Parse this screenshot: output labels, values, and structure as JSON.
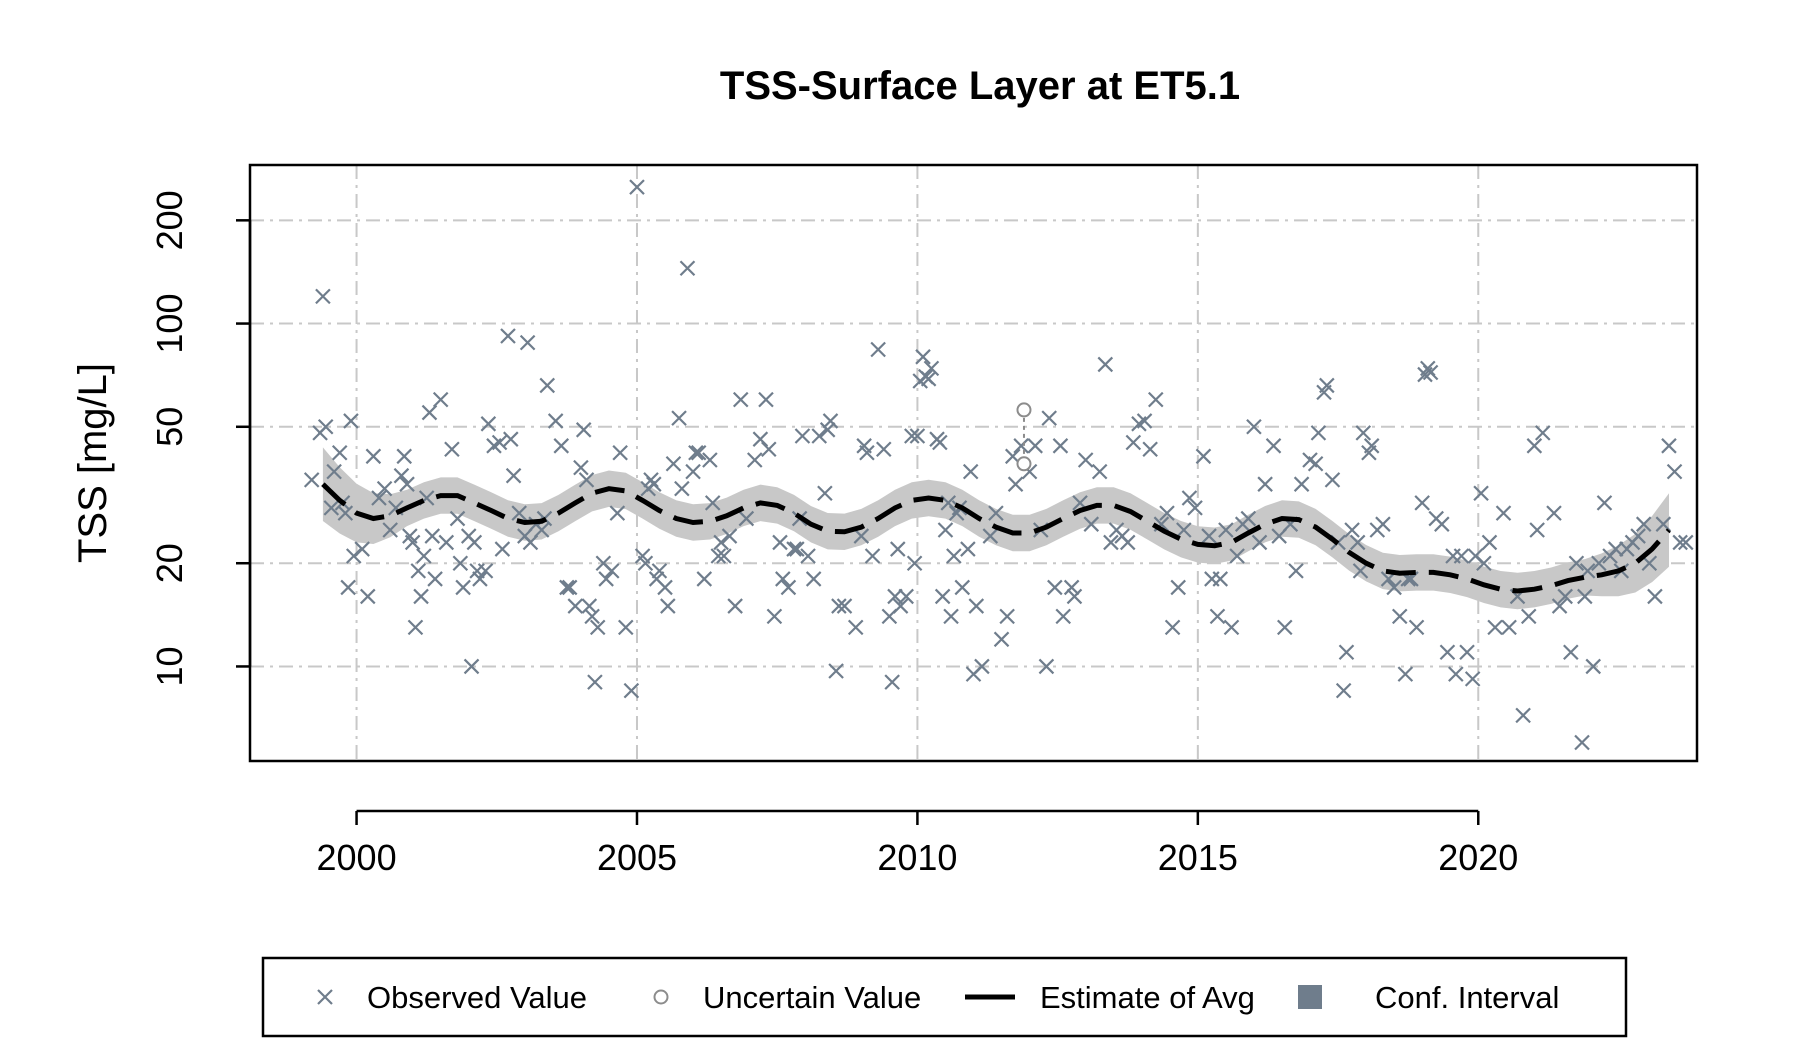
{
  "chart_data": {
    "type": "scatter",
    "title": "TSS-Surface Layer at ET5.1",
    "xlabel": "",
    "ylabel": "TSS [mg/L]",
    "y_scale": "log",
    "xlim": [
      1998.1,
      2023.9
    ],
    "ylim": [
      5.3,
      290
    ],
    "x_ticks": [
      2000,
      2005,
      2010,
      2015,
      2020
    ],
    "x_tick_labels": [
      "2000",
      "2005",
      "2010",
      "2015",
      "2020"
    ],
    "y_ticks": [
      10,
      20,
      50,
      100,
      200
    ],
    "y_tick_labels": [
      "10",
      "20",
      "50",
      "100",
      "200"
    ],
    "grid": true,
    "legend_position": "bottom",
    "colors": {
      "observed": "#6f7d8c",
      "uncertain": "#8c8c8c",
      "estimate": "#000000",
      "conf_band": "#c8c8c8",
      "conf_legend": "#6f7d8c",
      "grid": "#c8c8c8"
    },
    "legend": [
      {
        "label": "Observed Value",
        "symbol": "cross"
      },
      {
        "label": "Uncertain Value",
        "symbol": "circle"
      },
      {
        "label": "Estimate of Avg",
        "symbol": "dashed-line"
      },
      {
        "label": "Conf. Interval",
        "symbol": "square"
      }
    ],
    "observed": [
      [
        1999.2,
        35
      ],
      [
        1999.35,
        48
      ],
      [
        1999.4,
        120
      ],
      [
        1999.45,
        50
      ],
      [
        1999.55,
        29
      ],
      [
        1999.6,
        37
      ],
      [
        1999.7,
        42
      ],
      [
        1999.75,
        30
      ],
      [
        1999.8,
        28
      ],
      [
        1999.85,
        17
      ],
      [
        1999.9,
        52
      ],
      [
        1999.95,
        21
      ],
      [
        2000.1,
        22
      ],
      [
        2000.2,
        16
      ],
      [
        2000.3,
        41
      ],
      [
        2000.4,
        31
      ],
      [
        2000.5,
        33
      ],
      [
        2000.6,
        25
      ],
      [
        2000.7,
        29
      ],
      [
        2000.8,
        36
      ],
      [
        2000.85,
        41
      ],
      [
        2000.9,
        34
      ],
      [
        2000.95,
        24
      ],
      [
        2001.0,
        23
      ],
      [
        2001.05,
        13
      ],
      [
        2001.1,
        19
      ],
      [
        2001.15,
        16
      ],
      [
        2001.2,
        21
      ],
      [
        2001.25,
        31
      ],
      [
        2001.3,
        55
      ],
      [
        2001.35,
        24
      ],
      [
        2001.4,
        18
      ],
      [
        2001.5,
        60
      ],
      [
        2001.6,
        23
      ],
      [
        2001.7,
        43
      ],
      [
        2001.8,
        27
      ],
      [
        2001.85,
        20
      ],
      [
        2001.9,
        17
      ],
      [
        2002.0,
        24
      ],
      [
        2002.05,
        10
      ],
      [
        2002.1,
        23
      ],
      [
        2002.15,
        19
      ],
      [
        2002.2,
        18
      ],
      [
        2002.3,
        19
      ],
      [
        2002.35,
        51
      ],
      [
        2002.45,
        44
      ],
      [
        2002.55,
        45
      ],
      [
        2002.6,
        22
      ],
      [
        2002.7,
        92
      ],
      [
        2002.75,
        46
      ],
      [
        2002.8,
        36
      ],
      [
        2002.9,
        28
      ],
      [
        2003.0,
        24
      ],
      [
        2003.05,
        88
      ],
      [
        2003.1,
        23
      ],
      [
        2003.2,
        26
      ],
      [
        2003.3,
        25
      ],
      [
        2003.35,
        27
      ],
      [
        2003.4,
        66
      ],
      [
        2003.55,
        52
      ],
      [
        2003.65,
        44
      ],
      [
        2003.75,
        17
      ],
      [
        2003.8,
        17
      ],
      [
        2003.9,
        15
      ],
      [
        2004.0,
        38
      ],
      [
        2004.05,
        49
      ],
      [
        2004.1,
        35
      ],
      [
        2004.15,
        15
      ],
      [
        2004.2,
        14
      ],
      [
        2004.25,
        9
      ],
      [
        2004.3,
        13
      ],
      [
        2004.4,
        20
      ],
      [
        2004.45,
        18
      ],
      [
        2004.55,
        19
      ],
      [
        2004.65,
        28
      ],
      [
        2004.7,
        42
      ],
      [
        2004.8,
        13
      ],
      [
        2004.9,
        8.5
      ],
      [
        2005.0,
        250
      ],
      [
        2005.1,
        21
      ],
      [
        2005.15,
        20
      ],
      [
        2005.2,
        33
      ],
      [
        2005.25,
        35
      ],
      [
        2005.3,
        34
      ],
      [
        2005.35,
        18
      ],
      [
        2005.4,
        19
      ],
      [
        2005.5,
        17
      ],
      [
        2005.55,
        15
      ],
      [
        2005.65,
        39
      ],
      [
        2005.75,
        53
      ],
      [
        2005.8,
        33
      ],
      [
        2005.9,
        145
      ],
      [
        2006.0,
        37
      ],
      [
        2006.05,
        42
      ],
      [
        2006.1,
        42
      ],
      [
        2006.2,
        18
      ],
      [
        2006.3,
        40
      ],
      [
        2006.35,
        30
      ],
      [
        2006.45,
        21
      ],
      [
        2006.5,
        23
      ],
      [
        2006.55,
        21
      ],
      [
        2006.65,
        24
      ],
      [
        2006.75,
        15
      ],
      [
        2006.85,
        60
      ],
      [
        2006.95,
        27
      ],
      [
        2007.1,
        40
      ],
      [
        2007.2,
        46
      ],
      [
        2007.3,
        60
      ],
      [
        2007.35,
        43
      ],
      [
        2007.45,
        14
      ],
      [
        2007.55,
        23
      ],
      [
        2007.6,
        18
      ],
      [
        2007.7,
        17
      ],
      [
        2007.8,
        22
      ],
      [
        2007.85,
        22
      ],
      [
        2007.9,
        27
      ],
      [
        2007.95,
        47
      ],
      [
        2008.05,
        21
      ],
      [
        2008.15,
        18
      ],
      [
        2008.25,
        47
      ],
      [
        2008.35,
        32
      ],
      [
        2008.4,
        49
      ],
      [
        2008.45,
        52
      ],
      [
        2008.55,
        9.7
      ],
      [
        2008.6,
        15
      ],
      [
        2008.7,
        15
      ],
      [
        2008.9,
        13
      ],
      [
        2009.0,
        24
      ],
      [
        2009.05,
        44
      ],
      [
        2009.1,
        42
      ],
      [
        2009.2,
        21
      ],
      [
        2009.3,
        84
      ],
      [
        2009.4,
        43
      ],
      [
        2009.5,
        14
      ],
      [
        2009.55,
        9
      ],
      [
        2009.6,
        16
      ],
      [
        2009.65,
        22
      ],
      [
        2009.7,
        15
      ],
      [
        2009.8,
        16
      ],
      [
        2009.9,
        47
      ],
      [
        2009.95,
        20
      ],
      [
        2010.0,
        47
      ],
      [
        2010.05,
        68
      ],
      [
        2010.1,
        80
      ],
      [
        2010.15,
        70
      ],
      [
        2010.2,
        69
      ],
      [
        2010.25,
        74
      ],
      [
        2010.35,
        46
      ],
      [
        2010.4,
        45
      ],
      [
        2010.45,
        16
      ],
      [
        2010.5,
        25
      ],
      [
        2010.55,
        30
      ],
      [
        2010.6,
        14
      ],
      [
        2010.65,
        21
      ],
      [
        2010.7,
        28
      ],
      [
        2010.75,
        29
      ],
      [
        2010.8,
        17
      ],
      [
        2010.9,
        22
      ],
      [
        2010.95,
        37
      ],
      [
        2011.0,
        9.5
      ],
      [
        2011.05,
        15
      ],
      [
        2011.15,
        10
      ],
      [
        2011.3,
        24
      ],
      [
        2011.4,
        28
      ],
      [
        2011.5,
        12
      ],
      [
        2011.6,
        14
      ],
      [
        2011.7,
        41
      ],
      [
        2011.75,
        34
      ],
      [
        2011.85,
        44
      ],
      [
        2012.0,
        37
      ],
      [
        2012.1,
        44
      ],
      [
        2012.2,
        25
      ],
      [
        2012.3,
        10
      ],
      [
        2012.35,
        53
      ],
      [
        2012.45,
        17
      ],
      [
        2012.55,
        44
      ],
      [
        2012.6,
        14
      ],
      [
        2012.75,
        17
      ],
      [
        2012.8,
        16
      ],
      [
        2012.9,
        30
      ],
      [
        2013.0,
        40
      ],
      [
        2013.1,
        26
      ],
      [
        2013.25,
        37
      ],
      [
        2013.35,
        76
      ],
      [
        2013.45,
        23
      ],
      [
        2013.55,
        25
      ],
      [
        2013.65,
        24
      ],
      [
        2013.75,
        23
      ],
      [
        2013.85,
        45
      ],
      [
        2013.95,
        51
      ],
      [
        2014.05,
        52
      ],
      [
        2014.15,
        43
      ],
      [
        2014.25,
        60
      ],
      [
        2014.35,
        26
      ],
      [
        2014.45,
        28
      ],
      [
        2014.55,
        13
      ],
      [
        2014.65,
        17
      ],
      [
        2014.75,
        25
      ],
      [
        2014.85,
        31
      ],
      [
        2014.95,
        29
      ],
      [
        2015.1,
        41
      ],
      [
        2015.2,
        24
      ],
      [
        2015.25,
        18
      ],
      [
        2015.35,
        14
      ],
      [
        2015.4,
        18
      ],
      [
        2015.5,
        25
      ],
      [
        2015.6,
        13
      ],
      [
        2015.7,
        21
      ],
      [
        2015.8,
        26
      ],
      [
        2015.9,
        27
      ],
      [
        2016.0,
        50
      ],
      [
        2016.1,
        23
      ],
      [
        2016.2,
        34
      ],
      [
        2016.35,
        44
      ],
      [
        2016.45,
        24
      ],
      [
        2016.55,
        13
      ],
      [
        2016.65,
        26
      ],
      [
        2016.75,
        19
      ],
      [
        2016.85,
        34
      ],
      [
        2017.0,
        40
      ],
      [
        2017.1,
        39
      ],
      [
        2017.15,
        48
      ],
      [
        2017.25,
        63
      ],
      [
        2017.3,
        66
      ],
      [
        2017.4,
        35
      ],
      [
        2017.5,
        23
      ],
      [
        2017.6,
        8.5
      ],
      [
        2017.65,
        11
      ],
      [
        2017.75,
        25
      ],
      [
        2017.85,
        23
      ],
      [
        2017.9,
        19
      ],
      [
        2017.95,
        48
      ],
      [
        2018.05,
        42
      ],
      [
        2018.1,
        44
      ],
      [
        2018.2,
        25
      ],
      [
        2018.3,
        26
      ],
      [
        2018.4,
        18
      ],
      [
        2018.5,
        17
      ],
      [
        2018.6,
        14
      ],
      [
        2018.7,
        9.5
      ],
      [
        2018.75,
        18
      ],
      [
        2018.8,
        18
      ],
      [
        2018.9,
        13
      ],
      [
        2019.0,
        30
      ],
      [
        2019.05,
        71
      ],
      [
        2019.1,
        74
      ],
      [
        2019.15,
        72
      ],
      [
        2019.25,
        27
      ],
      [
        2019.35,
        26
      ],
      [
        2019.45,
        11
      ],
      [
        2019.55,
        21
      ],
      [
        2019.6,
        9.5
      ],
      [
        2019.7,
        21
      ],
      [
        2019.8,
        11
      ],
      [
        2019.9,
        9.2
      ],
      [
        2019.95,
        21
      ],
      [
        2020.05,
        32
      ],
      [
        2020.1,
        20
      ],
      [
        2020.2,
        23
      ],
      [
        2020.3,
        13
      ],
      [
        2020.45,
        28
      ],
      [
        2020.55,
        13
      ],
      [
        2020.7,
        16
      ],
      [
        2020.8,
        7.2
      ],
      [
        2020.9,
        14
      ],
      [
        2021.0,
        44
      ],
      [
        2021.05,
        25
      ],
      [
        2021.15,
        48
      ],
      [
        2021.35,
        28
      ],
      [
        2021.45,
        15
      ],
      [
        2021.55,
        16
      ],
      [
        2021.65,
        11
      ],
      [
        2021.75,
        20
      ],
      [
        2021.85,
        6
      ],
      [
        2021.9,
        16
      ],
      [
        2021.95,
        19
      ],
      [
        2022.05,
        10
      ],
      [
        2022.15,
        20
      ],
      [
        2022.25,
        30
      ],
      [
        2022.35,
        21
      ],
      [
        2022.45,
        22
      ],
      [
        2022.55,
        19
      ],
      [
        2022.65,
        22
      ],
      [
        2022.75,
        23
      ],
      [
        2022.85,
        24
      ],
      [
        2022.95,
        26
      ],
      [
        2023.05,
        20
      ],
      [
        2023.15,
        16
      ],
      [
        2023.3,
        26
      ],
      [
        2023.4,
        44
      ],
      [
        2023.5,
        37
      ],
      [
        2023.6,
        23
      ],
      [
        2023.7,
        23
      ]
    ],
    "uncertain": [
      {
        "x": 2011.9,
        "y": 56,
        "lower": 39
      }
    ],
    "estimate": [
      [
        1999.4,
        34
      ],
      [
        1999.7,
        30.5
      ],
      [
        2000.0,
        28
      ],
      [
        2000.3,
        27
      ],
      [
        2000.6,
        27.5
      ],
      [
        2000.9,
        29
      ],
      [
        2001.2,
        30.5
      ],
      [
        2001.5,
        31.5
      ],
      [
        2001.8,
        31.5
      ],
      [
        2002.1,
        30
      ],
      [
        2002.4,
        28.5
      ],
      [
        2002.7,
        27
      ],
      [
        2003.0,
        26.3
      ],
      [
        2003.3,
        26.5
      ],
      [
        2003.6,
        28
      ],
      [
        2003.9,
        30
      ],
      [
        2004.2,
        32
      ],
      [
        2004.5,
        33
      ],
      [
        2004.8,
        32.5
      ],
      [
        2005.1,
        30.5
      ],
      [
        2005.4,
        28.5
      ],
      [
        2005.7,
        27
      ],
      [
        2006.0,
        26.3
      ],
      [
        2006.3,
        26.5
      ],
      [
        2006.6,
        27.5
      ],
      [
        2006.9,
        29
      ],
      [
        2007.2,
        30
      ],
      [
        2007.5,
        29.5
      ],
      [
        2007.8,
        28
      ],
      [
        2008.1,
        26
      ],
      [
        2008.4,
        24.8
      ],
      [
        2008.7,
        24.7
      ],
      [
        2009.0,
        25.5
      ],
      [
        2009.3,
        27
      ],
      [
        2009.6,
        29
      ],
      [
        2009.9,
        30.5
      ],
      [
        2010.2,
        31
      ],
      [
        2010.5,
        30.5
      ],
      [
        2010.8,
        29
      ],
      [
        2011.1,
        27
      ],
      [
        2011.4,
        25.5
      ],
      [
        2011.7,
        24.5
      ],
      [
        2012.0,
        24.5
      ],
      [
        2012.3,
        25.5
      ],
      [
        2012.6,
        27
      ],
      [
        2012.9,
        28.5
      ],
      [
        2013.2,
        29.5
      ],
      [
        2013.5,
        29.5
      ],
      [
        2013.8,
        28.3
      ],
      [
        2014.1,
        26.5
      ],
      [
        2014.4,
        24.8
      ],
      [
        2014.7,
        23.5
      ],
      [
        2015.0,
        22.7
      ],
      [
        2015.3,
        22.5
      ],
      [
        2015.6,
        23
      ],
      [
        2015.9,
        24.5
      ],
      [
        2016.2,
        26
      ],
      [
        2016.5,
        27
      ],
      [
        2016.8,
        26.8
      ],
      [
        2017.1,
        25.5
      ],
      [
        2017.4,
        23.5
      ],
      [
        2017.7,
        21.5
      ],
      [
        2018.0,
        20
      ],
      [
        2018.3,
        19
      ],
      [
        2018.6,
        18.7
      ],
      [
        2018.9,
        18.8
      ],
      [
        2019.2,
        18.8
      ],
      [
        2019.5,
        18.5
      ],
      [
        2019.8,
        18
      ],
      [
        2020.1,
        17.3
      ],
      [
        2020.4,
        16.8
      ],
      [
        2020.7,
        16.6
      ],
      [
        2021.0,
        16.8
      ],
      [
        2021.3,
        17.2
      ],
      [
        2021.6,
        17.8
      ],
      [
        2021.9,
        18.2
      ],
      [
        2022.2,
        18.5
      ],
      [
        2022.5,
        19
      ],
      [
        2022.8,
        20
      ],
      [
        2023.1,
        22
      ],
      [
        2023.4,
        25
      ]
    ],
    "conf_halfwidth_ratio": 1.13,
    "conf_halfwidth_ratio_end": 1.28
  }
}
